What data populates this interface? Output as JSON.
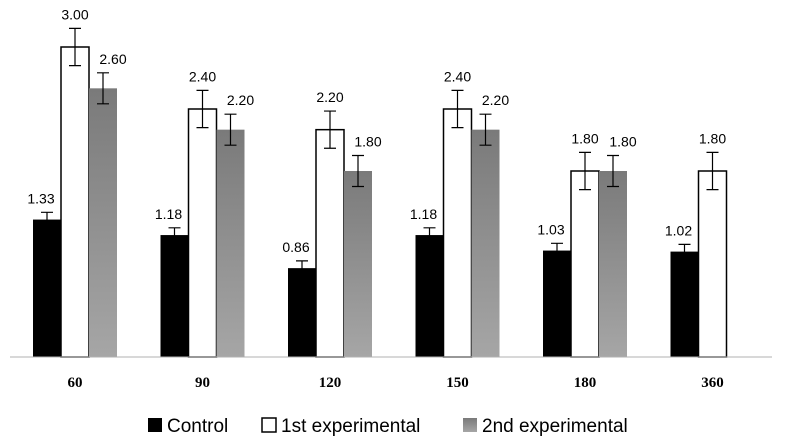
{
  "chart_data": {
    "type": "bar",
    "categories": [
      "60",
      "90",
      "120",
      "150",
      "180",
      "360"
    ],
    "series": [
      {
        "name": "Control",
        "values": [
          1.33,
          1.18,
          0.86,
          1.18,
          1.03,
          1.02
        ],
        "labels": [
          "1.33",
          "1.18",
          "0.86",
          "1.18",
          "1.03",
          "1.02"
        ],
        "error": [
          0.07,
          0.07,
          0.07,
          0.07,
          0.07,
          0.07
        ],
        "color": "#000000"
      },
      {
        "name": "1st experimental",
        "values": [
          3.0,
          2.4,
          2.2,
          2.4,
          1.8,
          1.8
        ],
        "labels": [
          "3.00",
          "2.40",
          "2.20",
          "2.40",
          "1.80",
          "1.80"
        ],
        "error": [
          0.18,
          0.18,
          0.18,
          0.18,
          0.18,
          0.18
        ],
        "color": "#ffffff"
      },
      {
        "name": "2nd experimental",
        "values": [
          2.6,
          2.2,
          1.8,
          2.2,
          1.8,
          null
        ],
        "labels": [
          "2.60",
          "2.20",
          "1.80",
          "2.20",
          "1.80",
          ""
        ],
        "error": [
          0.15,
          0.15,
          0.15,
          0.15,
          0.15,
          null
        ],
        "color": "#8c8c8c"
      }
    ],
    "ylim": [
      0,
      3.4
    ],
    "grid": false,
    "legend_position": "bottom"
  }
}
